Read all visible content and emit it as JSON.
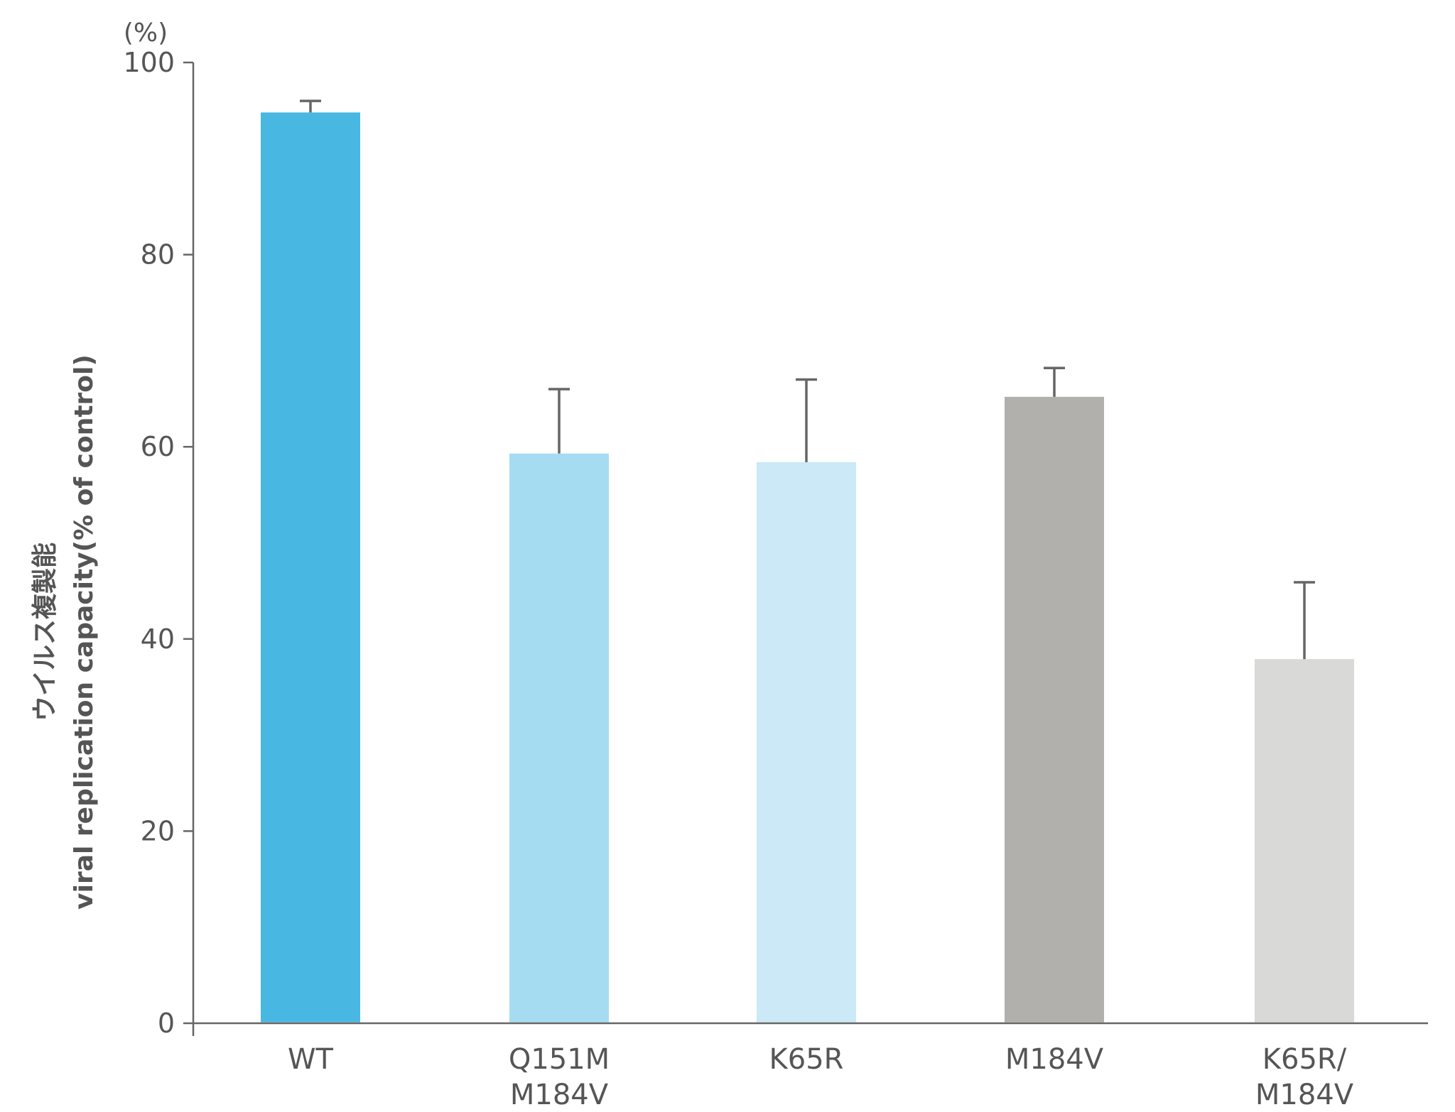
{
  "chart_data": {
    "type": "bar",
    "unit": "(%)",
    "ylabel_lines": [
      "ウイルス複製能",
      "viral replication capacity(% of control)"
    ],
    "xlabel": "",
    "ylim": [
      0,
      100
    ],
    "yticks": [
      0,
      20,
      40,
      60,
      80,
      100
    ],
    "grid": false,
    "legend": "none",
    "categories": [
      [
        "WT"
      ],
      [
        "Q151M",
        "M184V"
      ],
      [
        "K65R"
      ],
      [
        "M184V"
      ],
      [
        "K65R/",
        "M184V"
      ]
    ],
    "values": [
      94.8,
      59.3,
      58.4,
      65.2,
      37.9
    ],
    "error_upper": [
      96,
      66,
      67,
      68.2,
      45.9
    ],
    "colors": [
      "#48b8e3",
      "#a5dcf2",
      "#cbe9f7",
      "#b1b0ad",
      "#d9d9d8"
    ],
    "axis_color": "#666666",
    "error_color": "#666666"
  }
}
